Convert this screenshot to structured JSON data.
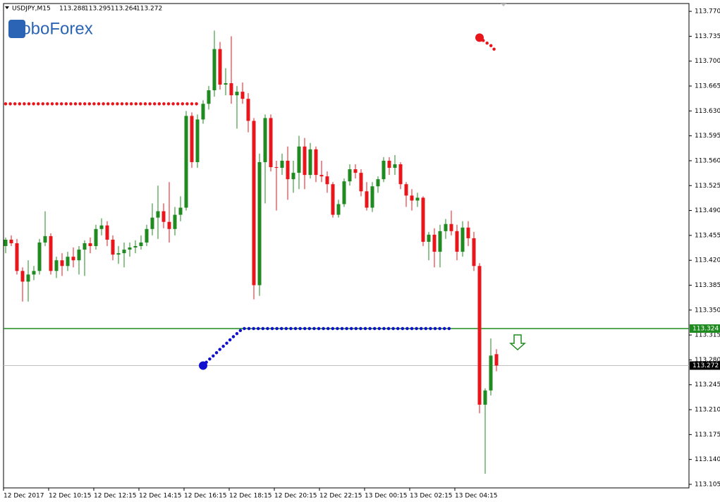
{
  "chart_data": {
    "type": "candlestick",
    "logo": "RoboForex",
    "symbol": "USDJPY,M15",
    "up_color": "#1f8a1f",
    "down_color": "#e8161b",
    "ylim": [
      113.1,
      113.781
    ],
    "yticks": [
      {
        "value": 113.77,
        "label": "113.770"
      },
      113.735,
      {
        "value": 113.7,
        "label": "113.700"
      },
      113.665,
      {
        "value": 113.63,
        "label": "113.630"
      },
      113.595,
      {
        "value": 113.56,
        "label": "113.560"
      },
      113.525,
      {
        "value": 113.49,
        "label": "113.490"
      },
      113.455,
      {
        "value": 113.42,
        "label": "113.420"
      },
      113.385,
      {
        "value": 113.35,
        "label": "113.350"
      },
      113.315,
      {
        "value": 113.28,
        "label": "113.280"
      },
      113.245,
      {
        "value": 113.21,
        "label": "113.210"
      },
      113.175,
      {
        "value": 113.14,
        "label": "113.140"
      },
      113.105
    ],
    "categories": [
      "12 Dec 2017",
      null,
      null,
      null,
      null,
      null,
      null,
      null,
      "12 Dec 10:15",
      null,
      null,
      null,
      null,
      null,
      null,
      null,
      "12 Dec 12:15",
      null,
      null,
      null,
      null,
      null,
      null,
      null,
      "12 Dec 14:15",
      null,
      null,
      null,
      null,
      null,
      null,
      null,
      "12 Dec 16:15",
      null,
      null,
      null,
      null,
      null,
      null,
      null,
      "12 Dec 18:15",
      null,
      null,
      null,
      null,
      null,
      null,
      null,
      "12 Dec 20:15",
      null,
      null,
      null,
      null,
      null,
      null,
      null,
      "12 Dec 22:15",
      null,
      null,
      null,
      null,
      null,
      null,
      null,
      "13 Dec 00:15",
      null,
      null,
      null,
      null,
      null,
      null,
      null,
      "13 Dec 02:15",
      null,
      null,
      null,
      null,
      null,
      null,
      null,
      "13 Dec 04:15",
      null,
      null,
      null,
      null,
      null,
      null,
      null
    ],
    "open": [
      113.44,
      113.449,
      113.444,
      113.405,
      113.39,
      113.4,
      113.405,
      113.445,
      113.454,
      113.405,
      113.42,
      113.412,
      113.425,
      113.42,
      113.435,
      113.444,
      113.44,
      113.464,
      113.469,
      113.449,
      113.428,
      113.43,
      113.435,
      113.438,
      113.44,
      113.445,
      113.464,
      113.48,
      113.489,
      113.474,
      113.464,
      113.484,
      113.494,
      113.623,
      113.558,
      113.618,
      113.64,
      113.659,
      113.717,
      113.667,
      113.669,
      113.652,
      113.657,
      113.647,
      113.616,
      113.385,
      113.558,
      113.62,
      113.551,
      113.55,
      113.56,
      113.534,
      113.543,
      113.58,
      113.54,
      113.576,
      113.54,
      113.538,
      113.527,
      113.484,
      113.499,
      113.531,
      113.548,
      113.543,
      113.517,
      113.494,
      113.524,
      113.534,
      113.56,
      113.55,
      113.555,
      113.527,
      113.511,
      113.504,
      113.508,
      113.446,
      113.456,
      113.432,
      113.461,
      113.471,
      113.461,
      113.432,
      113.466,
      113.451,
      113.412,
      113.217,
      113.237,
      113.288
    ],
    "high": [
      113.452,
      113.455,
      113.45,
      113.41,
      113.42,
      113.412,
      113.45,
      113.489,
      113.458,
      113.425,
      113.43,
      113.432,
      113.438,
      113.44,
      113.448,
      113.452,
      113.47,
      113.479,
      113.475,
      113.455,
      113.44,
      113.445,
      113.445,
      113.448,
      113.455,
      113.47,
      113.5,
      113.525,
      113.5,
      113.53,
      113.495,
      113.51,
      113.63,
      113.628,
      113.625,
      113.645,
      113.665,
      113.743,
      113.727,
      113.69,
      113.735,
      113.665,
      113.67,
      113.655,
      113.62,
      113.57,
      113.625,
      113.625,
      113.56,
      113.57,
      113.58,
      113.56,
      113.595,
      113.592,
      113.585,
      113.58,
      113.56,
      113.545,
      113.53,
      113.505,
      113.535,
      113.555,
      113.555,
      113.548,
      113.53,
      113.53,
      113.538,
      113.565,
      113.565,
      113.568,
      113.558,
      113.53,
      113.52,
      113.515,
      113.51,
      113.46,
      113.465,
      113.47,
      113.478,
      113.49,
      113.47,
      113.475,
      113.475,
      113.46,
      113.416,
      113.24,
      113.31,
      113.295
    ],
    "low": [
      113.43,
      113.44,
      113.4,
      113.362,
      113.362,
      113.392,
      113.4,
      113.44,
      113.4,
      113.395,
      113.398,
      113.405,
      113.41,
      113.4,
      113.398,
      113.43,
      113.435,
      113.455,
      113.44,
      113.42,
      113.415,
      113.41,
      113.425,
      113.43,
      113.435,
      113.44,
      113.455,
      113.45,
      113.465,
      113.445,
      113.455,
      113.475,
      113.49,
      113.55,
      113.55,
      113.612,
      113.632,
      113.65,
      113.66,
      113.652,
      113.64,
      113.605,
      113.64,
      113.6,
      113.365,
      113.37,
      113.5,
      113.545,
      113.49,
      113.54,
      113.505,
      113.515,
      113.52,
      113.52,
      113.535,
      113.53,
      113.53,
      113.515,
      113.48,
      113.48,
      113.495,
      113.525,
      113.535,
      113.51,
      113.49,
      113.488,
      113.515,
      113.53,
      113.54,
      113.54,
      113.52,
      113.495,
      113.49,
      113.495,
      113.44,
      113.42,
      113.41,
      113.41,
      113.45,
      113.455,
      113.42,
      113.425,
      113.44,
      113.405,
      113.205,
      113.12,
      113.23,
      113.264
    ],
    "close": [
      113.449,
      113.444,
      113.405,
      113.39,
      113.4,
      113.405,
      113.445,
      113.454,
      113.405,
      113.42,
      113.412,
      113.425,
      113.42,
      113.435,
      113.444,
      113.44,
      113.464,
      113.469,
      113.449,
      113.428,
      113.43,
      113.435,
      113.438,
      113.44,
      113.445,
      113.464,
      113.48,
      113.489,
      113.474,
      113.464,
      113.484,
      113.494,
      113.623,
      113.558,
      113.618,
      113.64,
      113.659,
      113.717,
      113.667,
      113.669,
      113.652,
      113.657,
      113.647,
      113.616,
      113.385,
      113.558,
      113.62,
      113.551,
      113.55,
      113.56,
      113.534,
      113.543,
      113.58,
      113.54,
      113.576,
      113.54,
      113.538,
      113.527,
      113.484,
      113.499,
      113.531,
      113.548,
      113.543,
      113.517,
      113.494,
      113.524,
      113.534,
      113.56,
      113.55,
      113.555,
      113.527,
      113.511,
      113.504,
      113.508,
      113.446,
      113.456,
      113.432,
      113.461,
      113.471,
      113.461,
      113.432,
      113.466,
      113.451,
      113.412,
      113.217,
      113.237,
      113.286,
      113.272
    ],
    "signal_line": 113.324,
    "signal_color": "#1f8a1f",
    "overlays": [
      {
        "color": "#e8161b",
        "values": [
          113.64,
          113.64,
          113.64,
          113.64,
          113.64,
          113.64,
          113.64,
          113.64,
          113.64,
          113.64,
          113.64,
          113.64,
          113.64,
          113.64,
          113.64,
          113.64,
          113.64,
          113.64,
          113.64,
          113.64,
          113.64,
          113.64,
          113.64,
          113.64,
          113.64,
          113.64,
          113.64,
          113.64,
          113.64,
          113.64,
          113.64,
          113.64,
          113.64,
          113.64,
          113.64,
          null,
          null,
          null,
          null,
          null,
          null,
          null,
          null,
          null,
          null,
          null,
          null,
          null,
          null,
          null,
          null,
          null,
          null,
          null,
          null,
          null,
          null,
          null,
          null,
          null,
          null,
          null,
          null,
          null,
          null,
          null,
          null,
          null,
          null,
          null,
          null,
          null,
          null,
          null,
          null,
          null,
          null,
          null,
          null,
          null,
          null,
          null,
          null,
          null,
          null,
          null,
          null,
          null
        ]
      },
      {
        "color": "#1010d0",
        "values": [
          null,
          null,
          null,
          null,
          null,
          null,
          null,
          null,
          null,
          null,
          null,
          null,
          null,
          null,
          null,
          null,
          null,
          null,
          null,
          null,
          null,
          null,
          null,
          null,
          null,
          null,
          null,
          null,
          null,
          null,
          null,
          null,
          null,
          null,
          null,
          113.272,
          113.28,
          113.287,
          113.295,
          113.302,
          113.31,
          113.317,
          113.324,
          113.324,
          113.324,
          113.324,
          113.324,
          113.324,
          113.324,
          113.324,
          113.324,
          113.324,
          113.324,
          113.324,
          113.324,
          113.324,
          113.324,
          113.324,
          113.324,
          113.324,
          113.324,
          113.324,
          113.324,
          113.324,
          113.324,
          113.324,
          113.324,
          113.324,
          113.324,
          113.324,
          113.324,
          113.324,
          113.324,
          113.324,
          113.324,
          113.324,
          113.324,
          113.324,
          113.324,
          113.324,
          null,
          null,
          null,
          null
        ]
      },
      {
        "color": "#e8161b",
        "values": [
          null,
          null,
          null,
          null,
          null,
          null,
          null,
          null,
          null,
          null,
          null,
          null,
          null,
          null,
          null,
          null,
          null,
          null,
          null,
          null,
          null,
          null,
          null,
          null,
          null,
          null,
          null,
          null,
          null,
          null,
          null,
          null,
          null,
          null,
          null,
          null,
          null,
          null,
          null,
          null,
          null,
          null,
          null,
          null,
          null,
          null,
          null,
          null,
          null,
          null,
          null,
          null,
          null,
          null,
          null,
          null,
          null,
          null,
          null,
          null,
          null,
          null,
          null,
          null,
          null,
          null,
          null,
          null,
          null,
          null,
          null,
          null,
          null,
          null,
          null,
          null,
          null,
          null,
          null,
          null,
          null,
          null,
          null,
          null,
          113.733,
          113.727,
          113.722,
          113.713
        ]
      }
    ]
  }
}
